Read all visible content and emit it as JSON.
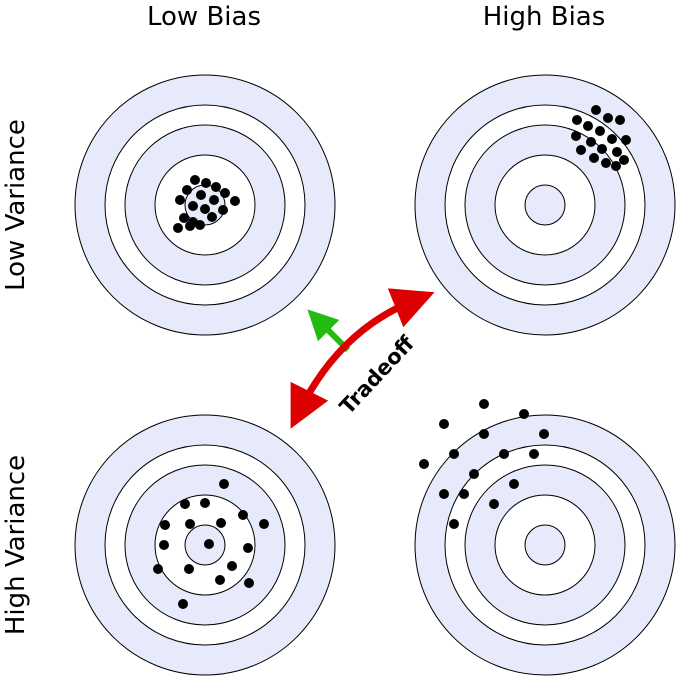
{
  "columns": [
    "Low Bias",
    "High Bias"
  ],
  "rows": [
    "Low Variance",
    "High Variance"
  ],
  "arrow": {
    "label": "Tradeoff"
  },
  "colors": {
    "ring_fill": "#e6eafb",
    "ring_stroke": "#000000",
    "dot": "#000000",
    "arrow_red": "#dd0000",
    "arrow_green": "#22bb11"
  },
  "targets": [
    {
      "id": "low-bias-low-variance"
    },
    {
      "id": "high-bias-low-variance"
    },
    {
      "id": "low-bias-high-variance"
    },
    {
      "id": "high-bias-high-variance"
    }
  ]
}
